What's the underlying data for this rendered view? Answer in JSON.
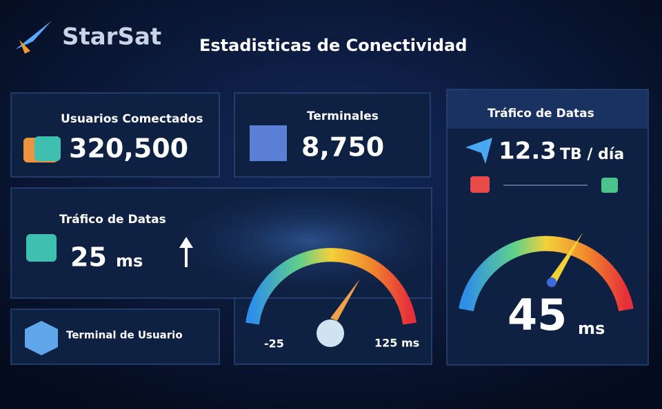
{
  "header": {
    "logo": "StarSat",
    "title": "Estadisticas de Conectividad"
  },
  "cards": [
    {
      "label": "Usuarios Comectados",
      "value": "320,500"
    },
    {
      "label": "Terminales",
      "value": "8,750"
    },
    {
      "label": "Tráfico de Datas",
      "value": "25",
      "unit": "ms"
    },
    {
      "label": "Terminal de Usuario"
    }
  ],
  "gauge_small": {
    "min_label": "-25",
    "max_label": "125 ms"
  },
  "side_panel": {
    "title": "Tráfico de Datas",
    "value": "12.3",
    "unit": "TB / día",
    "gauge_value": "45",
    "gauge_unit": "ms"
  }
}
